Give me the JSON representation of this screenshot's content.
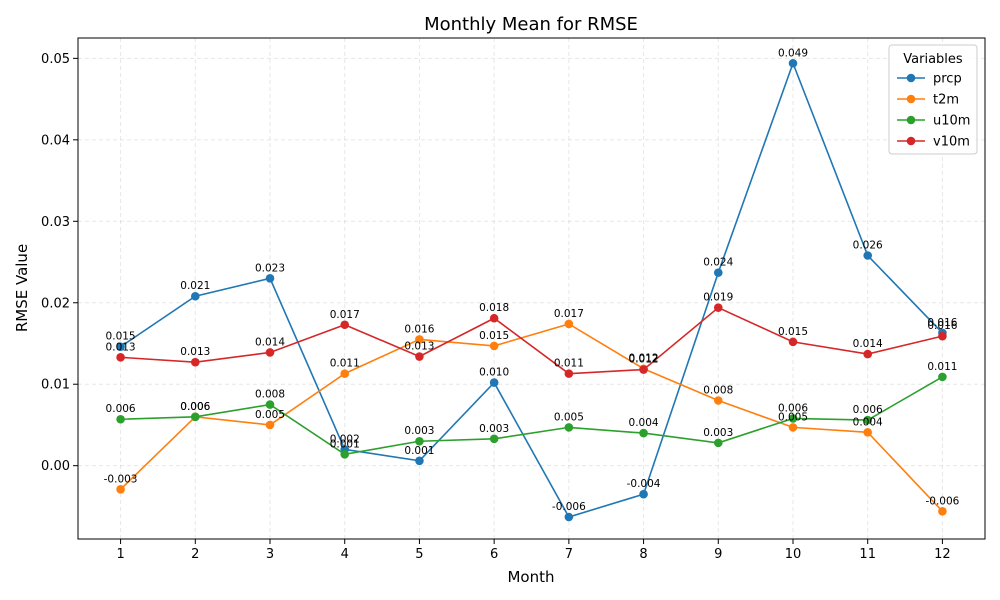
{
  "chart_data": {
    "type": "line",
    "title": "Monthly Mean for RMSE",
    "xlabel": "Month",
    "ylabel": "RMSE Value",
    "x": [
      1,
      2,
      3,
      4,
      5,
      6,
      7,
      8,
      9,
      10,
      11,
      12
    ],
    "xlim": [
      0.43,
      12.57
    ],
    "ylim": [
      -0.009,
      0.0525
    ],
    "yticks": [
      0.0,
      0.01,
      0.02,
      0.03,
      0.04,
      0.05
    ],
    "ytick_labels": [
      "0.00",
      "0.01",
      "0.02",
      "0.03",
      "0.04",
      "0.05"
    ],
    "grid": true,
    "legend": {
      "title": "Variables",
      "placement": "top-right"
    },
    "series": [
      {
        "name": "prcp",
        "color": "#1f77b4",
        "values": [
          0.0146,
          0.0208,
          0.023,
          0.002,
          0.0006,
          0.0102,
          -0.0063,
          -0.0035,
          0.0237,
          0.0494,
          0.0258,
          0.0163
        ],
        "labels": [
          "0.015",
          "0.021",
          "0.023",
          "0.002",
          "0.001",
          "0.010",
          "-0.006",
          "-0.004",
          "0.024",
          "0.049",
          "0.026",
          "0.016"
        ]
      },
      {
        "name": "t2m",
        "color": "#ff7f0e",
        "values": [
          -0.0029,
          0.006,
          0.005,
          0.0113,
          0.0155,
          0.0147,
          0.0174,
          0.0119,
          0.008,
          0.0047,
          0.0041,
          -0.0056
        ],
        "labels": [
          "-0.003",
          "0.006",
          "0.005",
          "0.011",
          "0.016",
          "0.015",
          "0.017",
          "0.012",
          "0.008",
          "0.005",
          "0.004",
          "-0.006"
        ]
      },
      {
        "name": "u10m",
        "color": "#2ca02c",
        "values": [
          0.0057,
          0.006,
          0.0075,
          0.0014,
          0.003,
          0.0033,
          0.0047,
          0.004,
          0.0028,
          0.0058,
          0.0056,
          0.0109
        ],
        "labels": [
          "0.006",
          "0.006",
          "0.008",
          "0.001",
          "0.003",
          "0.003",
          "0.005",
          "0.004",
          "0.003",
          "0.006",
          "0.006",
          "0.011"
        ]
      },
      {
        "name": "v10m",
        "color": "#d62728",
        "values": [
          0.0133,
          0.0127,
          0.0139,
          0.0173,
          0.0134,
          0.0181,
          0.0113,
          0.0118,
          0.0194,
          0.0152,
          0.0137,
          0.0159
        ],
        "labels": [
          "0.013",
          "0.013",
          "0.014",
          "0.017",
          "0.013",
          "0.018",
          "0.011",
          "0.012",
          "0.019",
          "0.015",
          "0.014",
          "0.016"
        ]
      }
    ]
  }
}
